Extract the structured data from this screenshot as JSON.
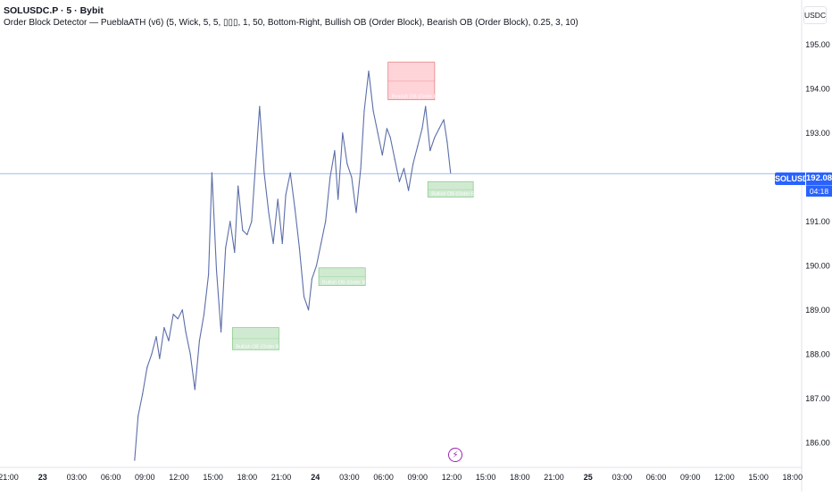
{
  "header": {
    "symbol": "SOLUSDC.P · 5 · Bybit",
    "indicator": "Order Block Detector — PueblaATH (v6) (5, Wick, 5, 5, ▯▯▯, 1, 50, Bottom-Right, Bullish OB (Order Block), Bearish OB (Order Block), 0.25, 3, 10)"
  },
  "currency": "USDC",
  "last_price": {
    "symbol_label": "SOLUSDC.P",
    "value": "192.08",
    "countdown": "04:18"
  },
  "event_icon": "lightning-bolt-icon",
  "colors": {
    "line": "#5b6ea8",
    "price_line": "#2962ff",
    "bullish_fill": "#c8e6c9",
    "bullish_border": "#81c784",
    "bearish_fill": "#ffcdd2",
    "bearish_border": "#e57373",
    "axis_text": "#131722"
  },
  "chart_data": {
    "type": "line",
    "title": "",
    "xlabel": "",
    "ylabel": "",
    "ylim": [
      185.5,
      195.4
    ],
    "y_ticks": [
      "195.00",
      "194.00",
      "193.00",
      "192.00",
      "191.00",
      "190.00",
      "189.00",
      "188.00",
      "187.00",
      "186.00"
    ],
    "x_ticks": [
      "21:00",
      "23",
      "03:00",
      "06:00",
      "09:00",
      "12:00",
      "15:00",
      "18:00",
      "21:00",
      "24",
      "03:00",
      "06:00",
      "09:00",
      "12:00",
      "15:00",
      "18:00",
      "21:00",
      "25",
      "03:00",
      "06:00",
      "09:00",
      "12:00",
      "15:00",
      "18:00"
    ],
    "x_tick_hours": [
      0,
      3,
      6,
      9,
      12,
      15,
      18,
      21,
      24,
      27,
      30,
      33,
      36,
      39,
      42,
      45,
      48,
      51,
      54,
      57,
      60,
      63,
      66,
      69
    ],
    "x_range_hours": [
      -0.75,
      69.8
    ],
    "series": [
      {
        "x": [
          11.1,
          11.4,
          11.8,
          12.2,
          12.6,
          13.0,
          13.3,
          13.7,
          14.1,
          14.5,
          14.9,
          15.3,
          15.6,
          16.0,
          16.4,
          16.8,
          17.2,
          17.6,
          17.9,
          18.3,
          18.7,
          19.1,
          19.5,
          19.9,
          20.2,
          20.6,
          21.0,
          21.4,
          21.8,
          22.1,
          22.5,
          22.9,
          23.3,
          23.7,
          24.1,
          24.4,
          24.8,
          25.2,
          25.6,
          26.0,
          26.4,
          26.7,
          27.1,
          27.5,
          27.9,
          28.3,
          28.7,
          29.0,
          29.4,
          29.8,
          30.2,
          30.6,
          31.0,
          31.3,
          31.7,
          32.1,
          32.5,
          32.9,
          33.3,
          33.6,
          34.0,
          34.4,
          34.8,
          35.2,
          35.6,
          36.0,
          36.4,
          36.7,
          37.1,
          37.5,
          37.9,
          38.3,
          38.6,
          38.9
        ],
        "y": [
          185.6,
          186.6,
          187.1,
          187.7,
          188.0,
          188.4,
          187.9,
          188.6,
          188.3,
          188.9,
          188.8,
          189.0,
          188.5,
          188.0,
          187.2,
          188.3,
          188.9,
          189.8,
          192.1,
          189.9,
          188.5,
          190.4,
          191.0,
          190.3,
          191.8,
          190.8,
          190.7,
          191.0,
          192.5,
          193.6,
          192.1,
          191.2,
          190.5,
          191.5,
          190.5,
          191.6,
          192.1,
          191.3,
          190.4,
          189.3,
          189.0,
          189.7,
          190.0,
          190.5,
          191.0,
          192.0,
          192.6,
          191.5,
          193.0,
          192.3,
          192.0,
          191.2,
          192.2,
          193.5,
          194.4,
          193.5,
          193.0,
          192.5,
          193.1,
          192.9,
          192.4,
          191.9,
          192.2,
          191.7,
          192.3,
          192.7,
          193.1,
          193.6,
          192.6,
          192.9,
          193.1,
          193.3,
          192.8,
          192.1
        ]
      }
    ],
    "order_blocks": [
      {
        "kind": "bearish",
        "label": "Bearish OB (Order Block)",
        "x0": 33.4,
        "x1": 37.5,
        "y_low": 193.75,
        "y_high": 194.6,
        "mid": 194.17
      },
      {
        "kind": "bullish",
        "label": "Bullish OB (Order Block)",
        "x0": 36.9,
        "x1": 40.9,
        "y_low": 191.55,
        "y_high": 191.9,
        "mid": 191.72
      },
      {
        "kind": "bullish",
        "label": "Bullish OB (Order Block)",
        "x0": 27.3,
        "x1": 31.4,
        "y_low": 189.55,
        "y_high": 189.95,
        "mid": 189.75
      },
      {
        "kind": "bullish",
        "label": "Bullish OB (Order Block)",
        "x0": 19.7,
        "x1": 23.8,
        "y_low": 188.1,
        "y_high": 188.6,
        "mid": 188.35
      }
    ],
    "last_price": 192.08,
    "grid": false,
    "legend": "none"
  }
}
